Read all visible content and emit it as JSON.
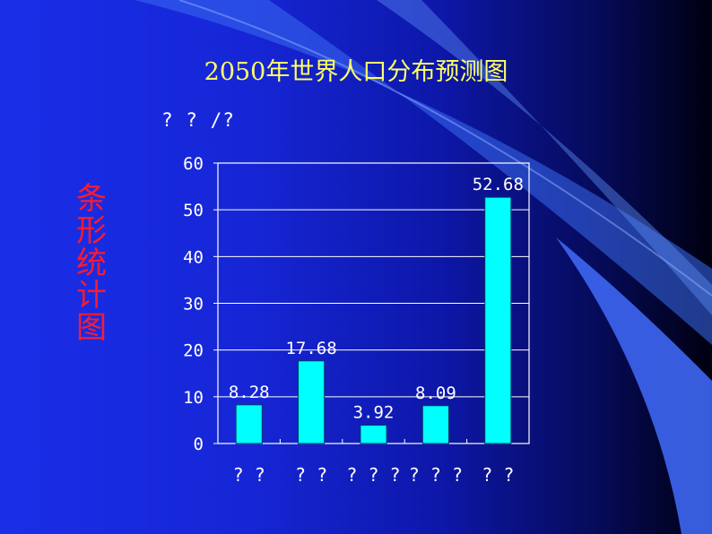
{
  "slide": {
    "side_label": "条形统计图"
  },
  "chart_data": {
    "type": "bar",
    "title": "2050年世界人口分布预测图",
    "ylabel": "? ? /?",
    "xlabel": "",
    "categories": [
      "? ?",
      "? ?",
      "? ? ?",
      "? ? ?",
      "? ?"
    ],
    "values": [
      8.28,
      17.68,
      3.92,
      8.09,
      52.68
    ],
    "value_labels": [
      "8.28",
      "17.68",
      "3.92",
      "8.09",
      "52.68"
    ],
    "ylim": [
      0,
      60
    ],
    "yticks": [
      0,
      10,
      20,
      30,
      40,
      50,
      60
    ],
    "grid": true,
    "legend": "none",
    "colors": {
      "bar": "#00ffff",
      "text": "#ffffff",
      "title": "#ffff66",
      "side_label": "#ff1a2e"
    }
  }
}
